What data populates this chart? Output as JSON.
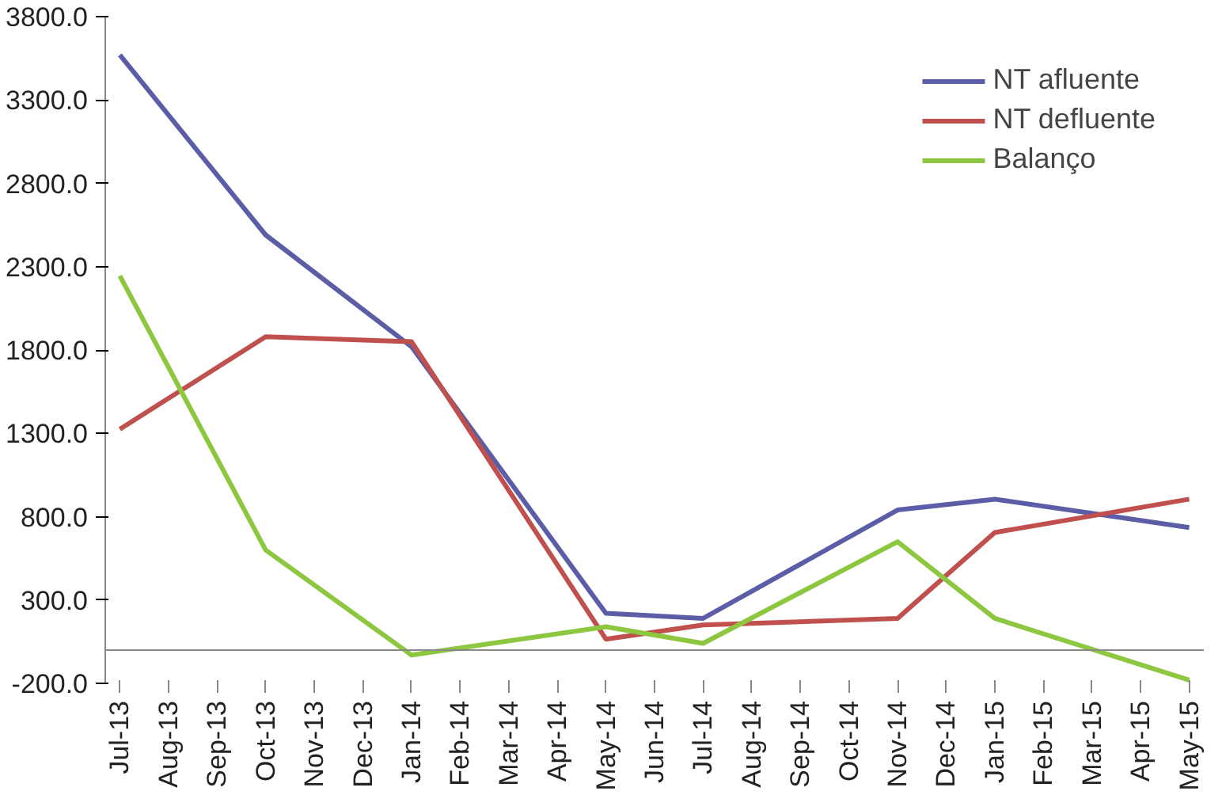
{
  "chart_data": {
    "type": "line",
    "categories": [
      "Jul-13",
      "Aug-13",
      "Sep-13",
      "Oct-13",
      "Nov-13",
      "Dec-13",
      "Jan-14",
      "Feb-14",
      "Mar-14",
      "Apr-14",
      "May-14",
      "Jun-14",
      "Jul-14",
      "Aug-14",
      "Sep-14",
      "Oct-14",
      "Nov-14",
      "Dec-14",
      "Jan-15",
      "Feb-15",
      "Mar-15",
      "Apr-15",
      "May-15"
    ],
    "series": [
      {
        "name": "NT afluente",
        "color": "#5b5ea6",
        "values": [
          3570,
          null,
          null,
          2490,
          null,
          null,
          1820,
          null,
          null,
          null,
          220,
          null,
          190,
          null,
          null,
          null,
          840,
          null,
          905,
          null,
          null,
          null,
          735
        ]
      },
      {
        "name": "NT defluente",
        "color": "#c0504d",
        "values": [
          1325,
          null,
          null,
          1880,
          null,
          null,
          1850,
          null,
          null,
          null,
          65,
          null,
          150,
          null,
          null,
          null,
          190,
          null,
          705,
          null,
          null,
          null,
          905
        ]
      },
      {
        "name": "Balanço",
        "color": "#8dc63f",
        "values": [
          2245,
          null,
          null,
          600,
          null,
          null,
          -30,
          null,
          null,
          null,
          140,
          null,
          40,
          null,
          null,
          null,
          650,
          null,
          190,
          null,
          null,
          null,
          -180
        ]
      }
    ],
    "ylim": [
      -200,
      3800
    ],
    "yticks": [
      {
        "value": -200,
        "label": "-200.0"
      },
      {
        "value": 300,
        "label": "300.0"
      },
      {
        "value": 800,
        "label": "800.0"
      },
      {
        "value": 1300,
        "label": "1300.0"
      },
      {
        "value": 1800,
        "label": "1800.0"
      },
      {
        "value": 2300,
        "label": "2300.0"
      },
      {
        "value": 2800,
        "label": "2800.0"
      },
      {
        "value": 3300,
        "label": "3300.0"
      },
      {
        "value": 3800,
        "label": "3800.0"
      }
    ],
    "grid": false,
    "legend": "top right",
    "marker": "none",
    "line_style": "solid"
  }
}
